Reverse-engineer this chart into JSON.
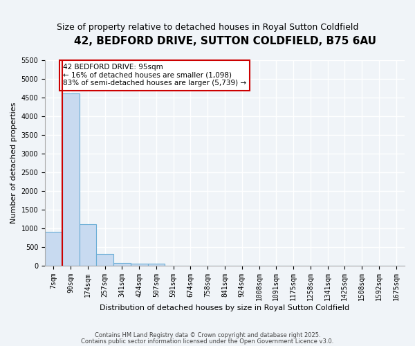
{
  "title": "42, BEDFORD DRIVE, SUTTON COLDFIELD, B75 6AU",
  "subtitle": "Size of property relative to detached houses in Royal Sutton Coldfield",
  "xlabel": "Distribution of detached houses by size in Royal Sutton Coldfield",
  "ylabel": "Number of detached properties",
  "categories": [
    "7sqm",
    "90sqm",
    "174sqm",
    "257sqm",
    "341sqm",
    "424sqm",
    "507sqm",
    "591sqm",
    "674sqm",
    "758sqm",
    "841sqm",
    "924sqm",
    "1008sqm",
    "1091sqm",
    "1175sqm",
    "1258sqm",
    "1341sqm",
    "1425sqm",
    "1508sqm",
    "1592sqm",
    "1675sqm"
  ],
  "values": [
    900,
    4600,
    1100,
    300,
    70,
    55,
    55,
    0,
    0,
    0,
    0,
    0,
    0,
    0,
    0,
    0,
    0,
    0,
    0,
    0,
    0
  ],
  "bar_color": "#c8daf0",
  "bar_edge_color": "#6baed6",
  "background_color": "#f0f4f8",
  "plot_bg_color": "#f0f4f8",
  "grid_color": "#ffffff",
  "vline_color": "#cc0000",
  "vline_x": 0.5,
  "ylim": [
    0,
    5500
  ],
  "yticks": [
    0,
    500,
    1000,
    1500,
    2000,
    2500,
    3000,
    3500,
    4000,
    4500,
    5000,
    5500
  ],
  "annotation_title": "42 BEDFORD DRIVE: 95sqm",
  "annotation_line1": "← 16% of detached houses are smaller (1,098)",
  "annotation_line2": "83% of semi-detached houses are larger (5,739) →",
  "annotation_box_color": "#cc0000",
  "footer1": "Contains HM Land Registry data © Crown copyright and database right 2025.",
  "footer2": "Contains public sector information licensed under the Open Government Licence v3.0.",
  "title_fontsize": 11,
  "subtitle_fontsize": 9,
  "tick_fontsize": 7,
  "axis_label_fontsize": 8
}
